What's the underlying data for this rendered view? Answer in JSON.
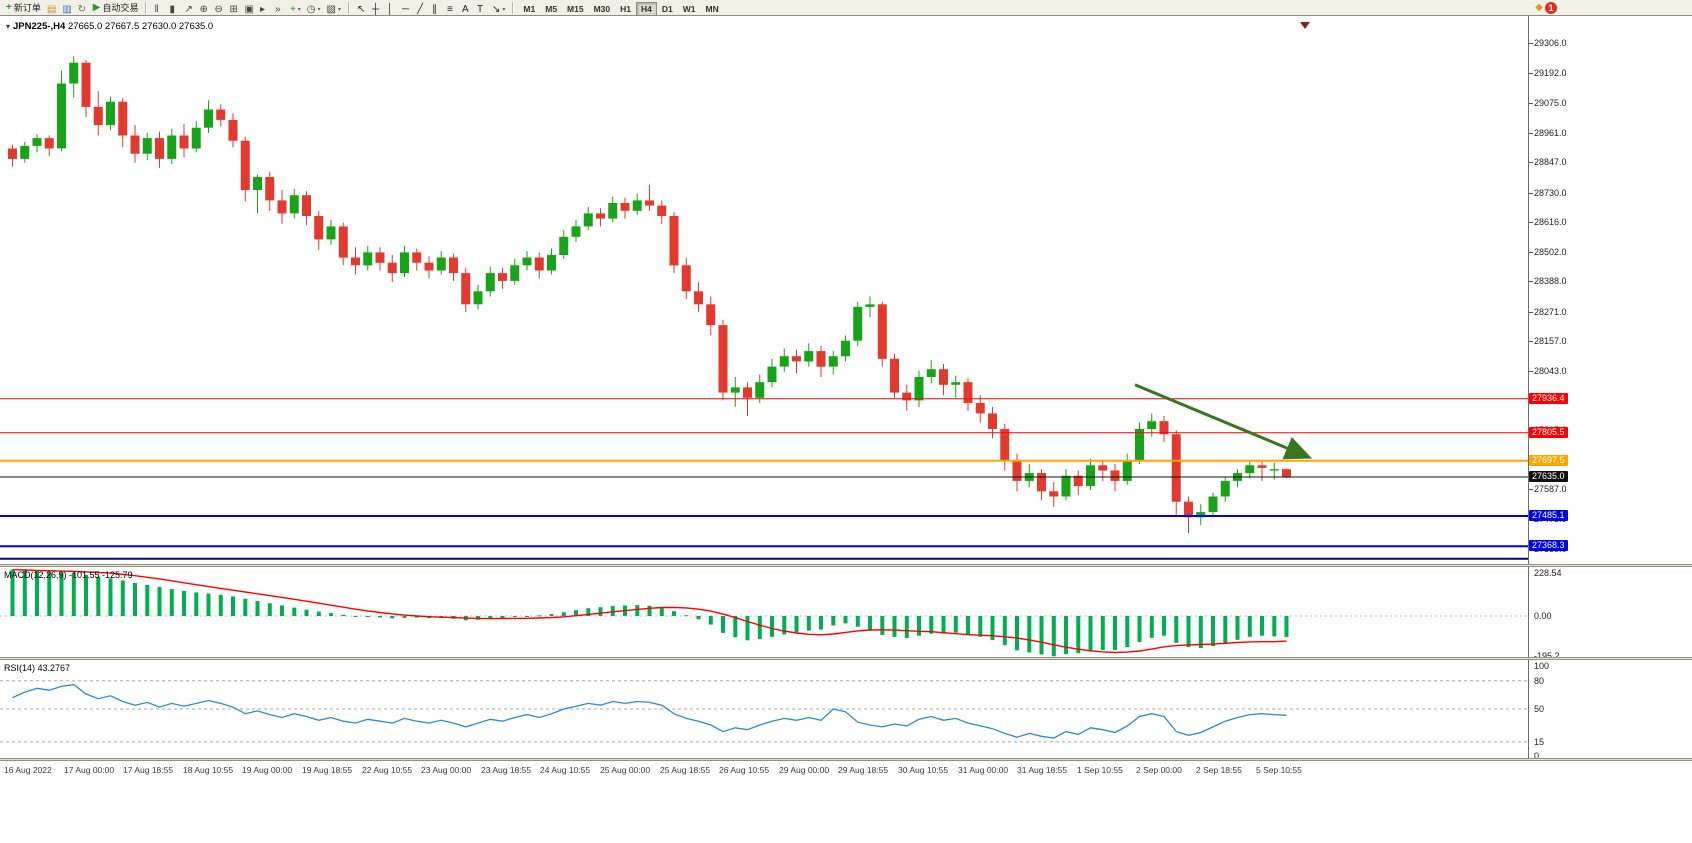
{
  "toolbar": {
    "new_order_label": "新订单",
    "new_order_glyph": "+",
    "autotrading_label": "自动交易",
    "autotrading_glyph": "▶",
    "misc_icons": [
      {
        "name": "charts-icon",
        "glyph": "▤",
        "color": "#C89B2A"
      },
      {
        "name": "market-watch-icon",
        "glyph": "▥",
        "color": "#3A6FC4"
      },
      {
        "name": "refresh-icon",
        "glyph": "↻",
        "color": "#2E9E2E"
      }
    ],
    "chart_icons": [
      {
        "name": "bar-chart-icon",
        "glyph": "‖",
        "color": "#444444"
      },
      {
        "name": "candlestick-icon",
        "glyph": "▮",
        "color": "#444444"
      },
      {
        "name": "line-chart-icon",
        "glyph": "↗",
        "color": "#444444"
      },
      {
        "name": "zoom-in-icon",
        "glyph": "⊕",
        "color": "#444444"
      },
      {
        "name": "zoom-out-icon",
        "glyph": "⊖",
        "color": "#444444"
      },
      {
        "name": "tile-windows-icon",
        "glyph": "⊞",
        "color": "#444444"
      },
      {
        "name": "new-chart-icon",
        "glyph": "▣",
        "color": "#444444"
      },
      {
        "name": "auto-scroll-icon",
        "glyph": "▸",
        "color": "#444444"
      },
      {
        "name": "chart-shift-icon",
        "glyph": "»",
        "color": "#444444"
      },
      {
        "name": "indicators-icon",
        "glyph": "+",
        "color": "#2E9E2E",
        "caret": true
      },
      {
        "name": "periods-icon",
        "glyph": "◷",
        "color": "#444444",
        "caret": true
      },
      {
        "name": "templates-icon",
        "glyph": "▧",
        "color": "#444444",
        "caret": true
      }
    ],
    "tool_icons": [
      {
        "name": "cursor-icon",
        "glyph": "↖",
        "color": "#222222"
      },
      {
        "name": "crosshair-icon",
        "glyph": "┼",
        "color": "#222222"
      },
      {
        "name": "vertical-line-icon",
        "glyph": "│",
        "color": "#222222"
      },
      {
        "name": "horizontal-line-icon",
        "glyph": "─",
        "color": "#222222"
      },
      {
        "name": "trendline-icon",
        "glyph": "╱",
        "color": "#222222"
      },
      {
        "name": "channel-icon",
        "glyph": "∥",
        "color": "#222222"
      },
      {
        "name": "fibonacci-icon",
        "glyph": "≡",
        "color": "#222222"
      },
      {
        "name": "text-icon",
        "glyph": "A",
        "color": "#222222"
      },
      {
        "name": "text-label-icon",
        "glyph": "T",
        "color": "#222222"
      },
      {
        "name": "arrows-icon",
        "glyph": "↘",
        "color": "#222222",
        "caret": true
      }
    ],
    "timeframes": [
      "M1",
      "M5",
      "M15",
      "M30",
      "H1",
      "H4",
      "D1",
      "W1",
      "MN"
    ],
    "active_timeframe": "H4",
    "notification_glyph": "◆",
    "notification_count": "1"
  },
  "chart_data": {
    "type": "candlestick",
    "symbol": "JPN225-",
    "period": "H4",
    "symbol_title": "JPN225-,H4",
    "dropdown_glyph": "▾",
    "title_ohlc": "27665.0 27667.5 27630.0 27635.0",
    "current_ohlc": {
      "open": 27665.0,
      "high": 27667.5,
      "low": 27630.0,
      "close": 27635.0
    },
    "colors": {
      "bull": "#18A418",
      "bear": "#E23A2E",
      "macd_bar": "#00B050",
      "macd_signal": "#FF0000",
      "rsi_line": "#2E8BD0",
      "arrow": "#38761D"
    },
    "price_ticks": [
      "29306.0",
      "29192.0",
      "29075.0",
      "28961.0",
      "28847.0",
      "28730.0",
      "28616.0",
      "28502.0",
      "28388.0",
      "28271.0",
      "28157.0",
      "28043.0",
      "27929.0",
      "27815.0",
      "27701.0",
      "27587.0",
      "27473.0",
      "27359.0"
    ],
    "horizontal_lines": [
      {
        "price": 27936.4,
        "label": "27936.4",
        "color": "#FF0000",
        "width": 1
      },
      {
        "price": 27805.5,
        "label": "27805.5",
        "color": "#FF0000",
        "width": 1
      },
      {
        "price": 27697.5,
        "label": "27697.5",
        "color": "#FFA500",
        "width": 2
      },
      {
        "price": 27635.0,
        "label": "27635.0",
        "color": "#111111",
        "width": 1,
        "badge": "#111111"
      },
      {
        "price": 27485.1,
        "label": "27485.1",
        "color": "#0000EE",
        "width": 2
      },
      {
        "price": 27368.3,
        "label": "27368.3",
        "color": "#0000EE",
        "width": 2
      },
      {
        "price": 27320.0,
        "label": "",
        "color": "#00008B",
        "width": 2
      }
    ],
    "arrow": {
      "x1_index": 92,
      "y1_price": 27990,
      "x2_index": 106,
      "y2_price": 27715
    },
    "times": [
      "16 Aug 2022",
      "17 Aug 00:00",
      "17 Aug 18:55",
      "18 Aug 10:55",
      "19 Aug 00:00",
      "19 Aug 18:55",
      "22 Aug 10:55",
      "23 Aug 00:00",
      "23 Aug 18:55",
      "24 Aug 10:55",
      "25 Aug 00:00",
      "25 Aug 18:55",
      "26 Aug 10:55",
      "29 Aug 00:00",
      "29 Aug 18:55",
      "30 Aug 10:55",
      "31 Aug 00:00",
      "31 Aug 18:55",
      "1 Sep 10:55",
      "2 Sep 00:00",
      "2 Sep 18:55",
      "5 Sep 10:55"
    ],
    "candles": [
      [
        28900,
        28915,
        28830,
        28860
      ],
      [
        28860,
        28925,
        28845,
        28910
      ],
      [
        28910,
        28955,
        28885,
        28940
      ],
      [
        28940,
        28950,
        28870,
        28900
      ],
      [
        28900,
        29200,
        28890,
        29150
      ],
      [
        29150,
        29255,
        29095,
        29230
      ],
      [
        29230,
        29240,
        29020,
        29060
      ],
      [
        29060,
        29120,
        28950,
        28990
      ],
      [
        28990,
        29100,
        28970,
        29080
      ],
      [
        29080,
        29095,
        28905,
        28950
      ],
      [
        28950,
        28990,
        28845,
        28880
      ],
      [
        28880,
        28960,
        28855,
        28940
      ],
      [
        28940,
        28965,
        28825,
        28860
      ],
      [
        28860,
        28975,
        28840,
        28950
      ],
      [
        28950,
        28995,
        28865,
        28900
      ],
      [
        28900,
        29005,
        28885,
        28980
      ],
      [
        28980,
        29085,
        28960,
        29050
      ],
      [
        29050,
        29070,
        28985,
        29010
      ],
      [
        29010,
        29035,
        28905,
        28930
      ],
      [
        28930,
        28945,
        28695,
        28740
      ],
      [
        28740,
        28800,
        28650,
        28790
      ],
      [
        28790,
        28810,
        28660,
        28700
      ],
      [
        28700,
        28740,
        28610,
        28650
      ],
      [
        28650,
        28745,
        28630,
        28720
      ],
      [
        28720,
        28735,
        28605,
        28640
      ],
      [
        28640,
        28660,
        28510,
        28550
      ],
      [
        28550,
        28625,
        28530,
        28600
      ],
      [
        28600,
        28615,
        28450,
        28480
      ],
      [
        28480,
        28520,
        28415,
        28450
      ],
      [
        28450,
        28525,
        28430,
        28500
      ],
      [
        28500,
        28520,
        28430,
        28460
      ],
      [
        28460,
        28490,
        28385,
        28420
      ],
      [
        28420,
        28525,
        28405,
        28500
      ],
      [
        28500,
        28515,
        28430,
        28460
      ],
      [
        28460,
        28485,
        28400,
        28430
      ],
      [
        28430,
        28505,
        28415,
        28480
      ],
      [
        28480,
        28495,
        28390,
        28420
      ],
      [
        28420,
        28440,
        28270,
        28300
      ],
      [
        28300,
        28375,
        28280,
        28350
      ],
      [
        28350,
        28445,
        28330,
        28420
      ],
      [
        28420,
        28440,
        28360,
        28390
      ],
      [
        28390,
        28475,
        28375,
        28450
      ],
      [
        28450,
        28505,
        28430,
        28480
      ],
      [
        28480,
        28500,
        28400,
        28430
      ],
      [
        28430,
        28515,
        28415,
        28490
      ],
      [
        28490,
        28585,
        28475,
        28560
      ],
      [
        28560,
        28625,
        28540,
        28600
      ],
      [
        28600,
        28675,
        28585,
        28650
      ],
      [
        28650,
        28670,
        28600,
        28630
      ],
      [
        28630,
        28715,
        28615,
        28690
      ],
      [
        28690,
        28710,
        28630,
        28660
      ],
      [
        28660,
        28725,
        28645,
        28700
      ],
      [
        28700,
        28760,
        28660,
        28680
      ],
      [
        28680,
        28700,
        28610,
        28640
      ],
      [
        28640,
        28655,
        28420,
        28450
      ],
      [
        28450,
        28480,
        28320,
        28350
      ],
      [
        28350,
        28385,
        28270,
        28300
      ],
      [
        28300,
        28330,
        28180,
        28220
      ],
      [
        28220,
        28240,
        27930,
        27960
      ],
      [
        27960,
        28020,
        27905,
        27980
      ],
      [
        27980,
        28000,
        27870,
        27940
      ],
      [
        27940,
        28030,
        27920,
        28000
      ],
      [
        28000,
        28090,
        27980,
        28060
      ],
      [
        28060,
        28130,
        28040,
        28100
      ],
      [
        28100,
        28125,
        28035,
        28080
      ],
      [
        28080,
        28150,
        28060,
        28120
      ],
      [
        28120,
        28140,
        28020,
        28060
      ],
      [
        28060,
        28120,
        28030,
        28100
      ],
      [
        28100,
        28180,
        28080,
        28160
      ],
      [
        28160,
        28310,
        28140,
        28290
      ],
      [
        28290,
        28330,
        28250,
        28300
      ],
      [
        28300,
        28310,
        28060,
        28090
      ],
      [
        28090,
        28110,
        27940,
        27960
      ],
      [
        27960,
        27990,
        27890,
        27930
      ],
      [
        27930,
        28045,
        27905,
        28020
      ],
      [
        28020,
        28085,
        27995,
        28050
      ],
      [
        28050,
        28070,
        27950,
        27990
      ],
      [
        27990,
        28025,
        27940,
        28000
      ],
      [
        28000,
        28015,
        27890,
        27920
      ],
      [
        27920,
        27950,
        27845,
        27880
      ],
      [
        27880,
        27905,
        27785,
        27820
      ],
      [
        27820,
        27840,
        27660,
        27700
      ],
      [
        27700,
        27725,
        27580,
        27620
      ],
      [
        27620,
        27685,
        27595,
        27650
      ],
      [
        27650,
        27665,
        27545,
        27580
      ],
      [
        27580,
        27615,
        27520,
        27560
      ],
      [
        27560,
        27665,
        27545,
        27640
      ],
      [
        27640,
        27660,
        27565,
        27600
      ],
      [
        27600,
        27705,
        27585,
        27680
      ],
      [
        27680,
        27700,
        27620,
        27660
      ],
      [
        27660,
        27685,
        27580,
        27620
      ],
      [
        27620,
        27725,
        27605,
        27700
      ],
      [
        27700,
        27845,
        27685,
        27820
      ],
      [
        27820,
        27880,
        27790,
        27850
      ],
      [
        27850,
        27870,
        27770,
        27800
      ],
      [
        27800,
        27815,
        27490,
        27540
      ],
      [
        27540,
        27560,
        27420,
        27480
      ],
      [
        27480,
        27530,
        27450,
        27500
      ],
      [
        27500,
        27575,
        27480,
        27560
      ],
      [
        27560,
        27635,
        27540,
        27620
      ],
      [
        27620,
        27665,
        27595,
        27650
      ],
      [
        27650,
        27700,
        27630,
        27680
      ],
      [
        27680,
        27695,
        27620,
        27670
      ],
      [
        27660,
        27690,
        27625,
        27665
      ],
      [
        27665,
        27667.5,
        27630,
        27635
      ]
    ],
    "indicators": [
      {
        "name": "MACD",
        "label": "MACD(12,26,9) -101.55 -125.79",
        "main_value": -101.55,
        "signal_value": -125.79,
        "scale_ticks": [
          "228.54",
          "0.00",
          "-195.2"
        ],
        "values": [
          225,
          222,
          219,
          215,
          212,
          209,
          201,
          191,
          183,
          173,
          161,
          151,
          141,
          131,
          122,
          115,
          109,
          103,
          95,
          84,
          73,
          62,
          51,
          41,
          31,
          22,
          14,
          6,
          -1,
          -4,
          -7,
          -11,
          -9,
          -8,
          -10,
          -9,
          -13,
          -21,
          -18,
          -13,
          -10,
          -5,
          0,
          3,
          9,
          18,
          28,
          38,
          43,
          48,
          51,
          53,
          50,
          42,
          24,
          4,
          -16,
          -42,
          -82,
          -103,
          -118,
          -112,
          -101,
          -90,
          -80,
          -71,
          -66,
          -46,
          -36,
          -52,
          -72,
          -92,
          -102,
          -107,
          -96,
          -86,
          -86,
          -81,
          -91,
          -101,
          -117,
          -142,
          -167,
          -177,
          -187,
          -196,
          -186,
          -181,
          -171,
          -166,
          -166,
          -151,
          -126,
          -106,
          -96,
          -131,
          -151,
          -156,
          -146,
          -131,
          -116,
          -101,
          -96,
          -99,
          -101.55
        ]
      },
      {
        "name": "RSI",
        "label": "RSI(14) 43.2767",
        "value": 43.2767,
        "scale_ticks": [
          "100",
          "80",
          "50",
          "15",
          "0"
        ],
        "levels": [
          80,
          50,
          15
        ],
        "values": [
          62,
          68,
          72,
          70,
          74,
          76,
          66,
          61,
          64,
          58,
          54,
          57,
          52,
          56,
          53,
          56,
          59,
          56,
          52,
          45,
          48,
          44,
          41,
          45,
          42,
          38,
          41,
          37,
          35,
          39,
          37,
          35,
          40,
          37,
          35,
          38,
          35,
          31,
          35,
          39,
          37,
          41,
          44,
          41,
          45,
          50,
          53,
          56,
          54,
          58,
          56,
          58,
          57,
          54,
          45,
          40,
          37,
          33,
          26,
          30,
          28,
          33,
          37,
          40,
          38,
          41,
          38,
          50,
          47,
          36,
          33,
          31,
          34,
          32,
          39,
          42,
          38,
          40,
          35,
          32,
          29,
          24,
          20,
          24,
          21,
          19,
          26,
          23,
          30,
          28,
          25,
          32,
          42,
          45,
          42,
          26,
          22,
          25,
          31,
          37,
          41,
          44,
          45,
          44,
          43.28
        ]
      }
    ]
  }
}
